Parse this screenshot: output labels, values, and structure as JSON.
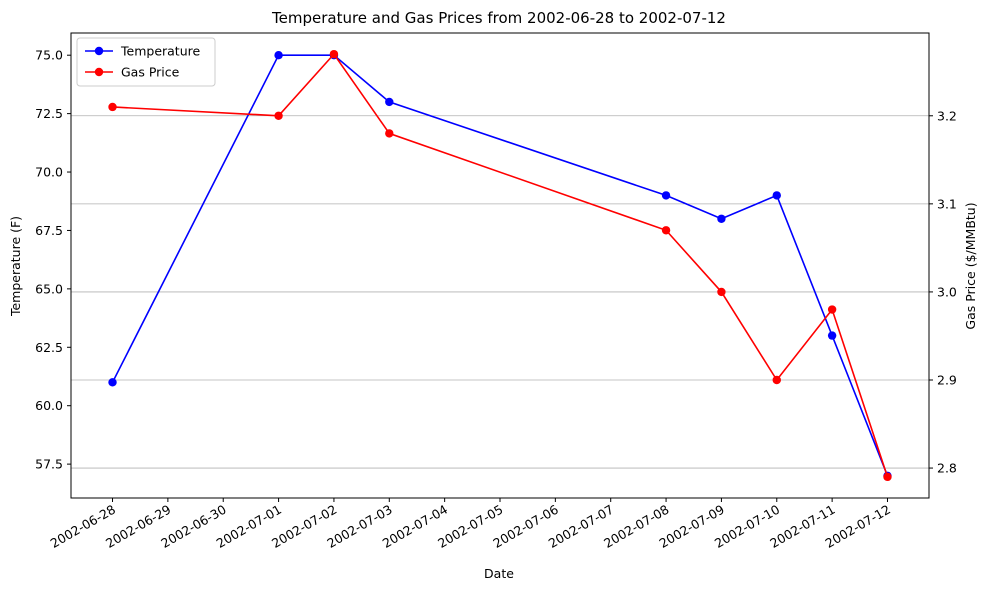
{
  "chart_data": {
    "type": "line",
    "title": "Temperature and Gas Prices from 2002-06-28 to 2002-07-12",
    "xlabel": "Date",
    "ylabel_left": "Temperature (F)",
    "ylabel_right": "Gas Price ($/MMBtu)",
    "x_ticks": [
      "2002-06-28",
      "2002-06-29",
      "2002-06-30",
      "2002-07-01",
      "2002-07-02",
      "2002-07-03",
      "2002-07-04",
      "2002-07-05",
      "2002-07-06",
      "2002-07-07",
      "2002-07-08",
      "2002-07-09",
      "2002-07-10",
      "2002-07-11",
      "2002-07-12"
    ],
    "y_left_ticks": [
      "57.5",
      "60.0",
      "62.5",
      "65.0",
      "67.5",
      "70.0",
      "72.5",
      "75.0"
    ],
    "y_right_ticks": [
      "2.8",
      "2.9",
      "3.0",
      "3.1",
      "3.2"
    ],
    "ylim_left": [
      56.05,
      75.95
    ],
    "ylim_right": [
      2.766,
      3.294
    ],
    "xlim": [
      "2002-06-27T06:00",
      "2002-07-12T18:00"
    ],
    "grid": "right-axis horizontal",
    "legend": "top-left",
    "series": [
      {
        "name": "Temperature",
        "axis": "left",
        "color": "#0000ff",
        "x": [
          "2002-06-28",
          "2002-07-01",
          "2002-07-02",
          "2002-07-03",
          "2002-07-08",
          "2002-07-09",
          "2002-07-10",
          "2002-07-11",
          "2002-07-12"
        ],
        "values": [
          61,
          75,
          75,
          73,
          69,
          68,
          69,
          63,
          57
        ]
      },
      {
        "name": "Gas Price",
        "axis": "right",
        "color": "#ff0000",
        "x": [
          "2002-06-28",
          "2002-07-01",
          "2002-07-02",
          "2002-07-03",
          "2002-07-08",
          "2002-07-09",
          "2002-07-10",
          "2002-07-11",
          "2002-07-12"
        ],
        "values": [
          3.21,
          3.2,
          3.27,
          3.18,
          3.07,
          3.0,
          2.9,
          2.98,
          2.79
        ]
      }
    ]
  }
}
